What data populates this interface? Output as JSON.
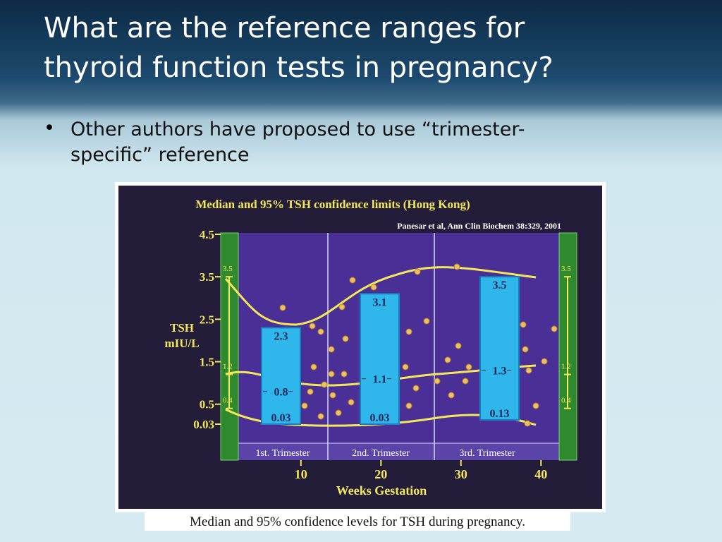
{
  "slide": {
    "title_lines": [
      "What are the reference ranges for",
      "thyroid function tests in pregnancy?"
    ],
    "bullet_lines": [
      "Other authors have proposed to use “trimester-",
      "specific” reference"
    ]
  },
  "figure": {
    "title": "Median and 95% TSH confidence limits  (Hong Kong)",
    "source": "Panesar et al, Ann Clin Biochem 38:329, 2001",
    "y_label_lines": [
      "TSH",
      "mIU/L"
    ],
    "x_label": "Weeks Gestation",
    "ylim": [
      0.03,
      4.5
    ],
    "yticks": [
      4.5,
      3.5,
      2.5,
      1.5,
      0.5,
      0.03
    ],
    "xlim": [
      2,
      42
    ],
    "xticks": [
      10,
      20,
      30,
      40
    ],
    "side_range": {
      "upper": 3.5,
      "median": 1.2,
      "lower": 0.4
    },
    "trimesters": [
      {
        "name": "1st. Trimester",
        "upper": 2.3,
        "median": 0.8,
        "lower": 0.03
      },
      {
        "name": "2nd. Trimester",
        "upper": 3.1,
        "median": 1.1,
        "lower": 0.03
      },
      {
        "name": "3rd. Trimester",
        "upper": 3.5,
        "median": 1.3,
        "lower": 0.13
      }
    ],
    "caption": "Median and 95% confidence levels for TSH during pregnancy."
  }
}
